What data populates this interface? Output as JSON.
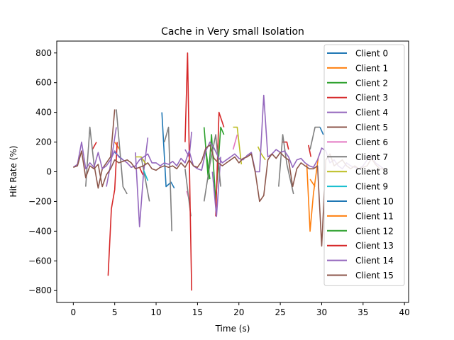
{
  "chart_data": {
    "type": "line",
    "title": "Cache in Very small Isolation",
    "xlabel": "Time (s)",
    "ylabel": "Hit Rate (%)",
    "xlim": [
      -2,
      40.5
    ],
    "ylim": [
      -880,
      880
    ],
    "xticks": [
      0,
      5,
      10,
      15,
      20,
      25,
      30,
      35,
      40
    ],
    "yticks": [
      -800,
      -600,
      -400,
      -200,
      0,
      200,
      400,
      600,
      800
    ],
    "grid": false,
    "legend": "upper-right",
    "series": [
      {
        "name": "Client 0",
        "color": "#1f77b4",
        "x": [
          5,
          6,
          10.7,
          11.2,
          11.8,
          12.2
        ],
        "y": [
          130,
          80,
          400,
          -100,
          -70,
          -110
        ]
      },
      {
        "name": "Client 1",
        "color": "#ff7f0e",
        "x": [
          5,
          5.6,
          28.2,
          28.6,
          29,
          29.6
        ],
        "y": [
          200,
          150,
          50,
          -400,
          -150,
          100
        ]
      },
      {
        "name": "Client 2",
        "color": "#2ca02c",
        "x": [
          15.8,
          16.3,
          16.7,
          17.2,
          17.8,
          18.2
        ],
        "y": [
          300,
          -50,
          250,
          -200,
          300,
          250
        ]
      },
      {
        "name": "Client 3",
        "color": "#d62728",
        "x": [
          2.3,
          2.8,
          8,
          8.4,
          17.2,
          17.6,
          18.2,
          25.2,
          25.8,
          26,
          28.4,
          28.7
        ],
        "y": [
          150,
          200,
          30,
          -20,
          -300,
          400,
          300,
          200,
          200,
          150,
          180,
          100
        ]
      },
      {
        "name": "Client 4",
        "color": "#9467bd",
        "x": [
          4,
          4.5,
          5.2,
          7.5,
          8,
          8.5,
          9,
          13.5,
          14,
          14.3,
          16.8,
          17.3,
          17.8
        ],
        "y": [
          -100,
          50,
          300,
          130,
          -370,
          0,
          230,
          150,
          100,
          270,
          0,
          -300,
          100
        ]
      },
      {
        "name": "Client 5",
        "color": "#8c564b",
        "x": [
          2.5,
          3,
          3.5,
          4.5,
          5
        ],
        "y": [
          50,
          -110,
          20,
          100,
          420
        ]
      },
      {
        "name": "Client 6",
        "color": "#e377c2",
        "x": [
          13.7,
          14.1,
          19.3,
          19.8
        ],
        "y": [
          -130,
          -210,
          150,
          250
        ]
      },
      {
        "name": "Client 7",
        "color": "#7f7f7f",
        "x": [
          1.5,
          2,
          2.5,
          5.2,
          6,
          6.5,
          8.2,
          9.2,
          11,
          11.5,
          11.9,
          13.5,
          14.2,
          15.8,
          16.5,
          17.2,
          17.8,
          24.8,
          25.3,
          25.8,
          26.6,
          28.6,
          29.2,
          29.8
        ],
        "y": [
          -100,
          300,
          50,
          420,
          -100,
          -150,
          100,
          -200,
          200,
          300,
          -400,
          20,
          -300,
          -200,
          50,
          250,
          -100,
          -100,
          250,
          50,
          -150,
          150,
          300,
          300
        ]
      },
      {
        "name": "Client 8",
        "color": "#bcbd22",
        "x": [
          7.5,
          8.2,
          8.8,
          19.3,
          19.8,
          20.3,
          22.3,
          22.7,
          23.2
        ],
        "y": [
          100,
          100,
          50,
          300,
          300,
          50,
          170,
          120,
          80
        ]
      },
      {
        "name": "Client 9",
        "color": "#17becf",
        "x": [
          8.5,
          9
        ],
        "y": [
          10,
          -60
        ]
      },
      {
        "name": "Client 10",
        "color": "#1f77b4",
        "x": [
          29.8,
          30.2
        ],
        "y": [
          300,
          250
        ]
      },
      {
        "name": "Client 11",
        "color": "#ff7f0e",
        "x": [
          28.6,
          29.2
        ],
        "y": [
          -50,
          -100
        ]
      },
      {
        "name": "Client 12",
        "color": "#2ca02c",
        "x": [
          16,
          16.5
        ],
        "y": [
          150,
          -50
        ]
      },
      {
        "name": "Client 13",
        "color": "#d62728",
        "x": [
          4.2,
          4.6,
          5,
          5.3,
          13.5,
          13.8,
          14.1,
          14.3
        ],
        "y": [
          -700,
          -250,
          -120,
          200,
          200,
          800,
          -200,
          -800
        ]
      },
      {
        "name": "Client 14",
        "color": "#9467bd",
        "x": [
          0,
          0.5,
          1,
          1.5,
          2,
          2.5,
          3,
          3.5,
          4,
          4.5,
          5,
          5.5,
          6,
          6.5,
          7,
          7.5,
          8,
          8.5,
          9,
          9.5,
          10,
          10.5,
          11,
          11.5,
          12,
          12.5,
          13,
          13.5,
          14,
          14.5,
          15,
          15.5,
          16,
          16.5,
          17,
          17.5,
          18,
          18.5,
          19,
          19.5,
          20,
          20.5,
          21,
          21.5,
          22,
          22.5,
          23,
          23.5,
          24,
          24.5,
          25,
          25.5,
          26,
          26.5,
          27,
          27.5,
          28,
          28.5,
          29,
          29.5,
          30,
          30.5,
          31,
          31.5,
          32,
          32.5,
          33,
          33.5,
          34,
          34.5,
          35,
          35.5,
          36,
          36.5,
          37,
          37.5
        ],
        "y": [
          30,
          50,
          200,
          20,
          60,
          30,
          130,
          20,
          40,
          80,
          140,
          100,
          80,
          60,
          30,
          40,
          80,
          100,
          120,
          60,
          60,
          40,
          60,
          50,
          70,
          40,
          90,
          60,
          140,
          40,
          20,
          10,
          140,
          200,
          160,
          100,
          60,
          80,
          100,
          120,
          90,
          80,
          110,
          130,
          0,
          0,
          515,
          100,
          120,
          150,
          130,
          140,
          100,
          30,
          80,
          90,
          60,
          40,
          30,
          80,
          160,
          140,
          60,
          80,
          40,
          20,
          60,
          40,
          30,
          20,
          40,
          80,
          120,
          60,
          40,
          20
        ]
      },
      {
        "name": "Client 15",
        "color": "#8c564b",
        "x": [
          0,
          0.5,
          1,
          1.5,
          2,
          2.5,
          3,
          3.5,
          4,
          4.5,
          5,
          5.5,
          6,
          6.5,
          7,
          7.5,
          8,
          8.5,
          9,
          9.5,
          10,
          10.5,
          11,
          11.5,
          12,
          12.5,
          13,
          13.5,
          14,
          14.5,
          15,
          15.5,
          16,
          16.5,
          17,
          17.5,
          18,
          18.5,
          19,
          19.5,
          20,
          20.5,
          21,
          21.5,
          22,
          22.5,
          23,
          23.5,
          24,
          24.5,
          25,
          25.5,
          26,
          26.5,
          27,
          27.5,
          28,
          28.5,
          29,
          29.5,
          30,
          30.5,
          31,
          31.5,
          32,
          32.5,
          33,
          33.5,
          34,
          34.5,
          35,
          35.5,
          36,
          36.5,
          37,
          37.5
        ],
        "y": [
          30,
          40,
          140,
          -40,
          40,
          20,
          50,
          -100,
          -20,
          20,
          80,
          60,
          70,
          80,
          60,
          20,
          30,
          40,
          60,
          20,
          10,
          30,
          40,
          30,
          40,
          20,
          60,
          30,
          80,
          40,
          30,
          70,
          160,
          180,
          90,
          60,
          40,
          60,
          80,
          100,
          60,
          90,
          100,
          120,
          -10,
          -200,
          -160,
          80,
          120,
          90,
          130,
          100,
          80,
          -100,
          20,
          60,
          40,
          20,
          20,
          40,
          -500,
          80,
          120,
          40,
          60,
          80,
          40,
          20,
          40,
          20,
          30,
          40,
          90,
          50,
          20,
          20
        ]
      }
    ]
  }
}
